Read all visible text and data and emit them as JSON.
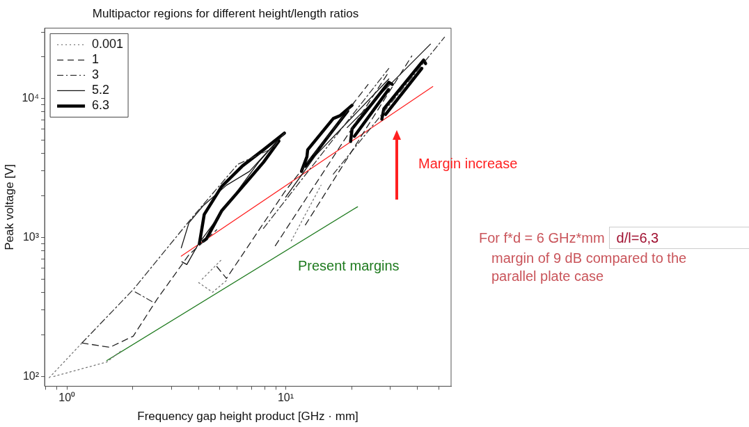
{
  "chart_data": {
    "type": "line",
    "title": "Multipactor regions for different height/length ratios",
    "xlabel": "Frequency gap height product [GHz · mm]",
    "ylabel": "Peak voltage [V]",
    "log": "xy",
    "grid": false,
    "legend": "top left",
    "xlim": [
      0.79,
      57
    ],
    "ylim": [
      85,
      32000
    ],
    "xticks": [
      {
        "value": 0.8,
        "label": null
      },
      {
        "value": 0.9,
        "label": null
      },
      {
        "value": 1,
        "label": "10⁰"
      },
      {
        "value": 2,
        "label": null
      },
      {
        "value": 3,
        "label": null
      },
      {
        "value": 4,
        "label": null
      },
      {
        "value": 5,
        "label": null
      },
      {
        "value": 6,
        "label": null
      },
      {
        "value": 7,
        "label": null
      },
      {
        "value": 8,
        "label": null
      },
      {
        "value": 9,
        "label": null
      },
      {
        "value": 10,
        "label": "10¹"
      },
      {
        "value": 20,
        "label": null
      },
      {
        "value": 30,
        "label": null
      },
      {
        "value": 40,
        "label": null
      },
      {
        "value": 50,
        "label": null
      }
    ],
    "yticks": [
      {
        "value": 100,
        "label": "10²"
      },
      {
        "value": 200,
        "label": null
      },
      {
        "value": 300,
        "label": null
      },
      {
        "value": 400,
        "label": null
      },
      {
        "value": 500,
        "label": null
      },
      {
        "value": 600,
        "label": null
      },
      {
        "value": 700,
        "label": null
      },
      {
        "value": 800,
        "label": null
      },
      {
        "value": 900,
        "label": null
      },
      {
        "value": 1000,
        "label": "10³"
      },
      {
        "value": 2000,
        "label": null
      },
      {
        "value": 3000,
        "label": null
      },
      {
        "value": 4000,
        "label": null
      },
      {
        "value": 5000,
        "label": null
      },
      {
        "value": 6000,
        "label": null
      },
      {
        "value": 7000,
        "label": null
      },
      {
        "value": 8000,
        "label": null
      },
      {
        "value": 9000,
        "label": null
      },
      {
        "value": 10000,
        "label": "10⁴"
      },
      {
        "value": 20000,
        "label": null
      },
      {
        "value": 30000,
        "label": null
      }
    ],
    "series": [
      {
        "name": "0.001",
        "color": "#777777",
        "line_style": "dotted",
        "x": [
          0.83,
          1.17
        ],
        "values": [
          98,
          174
        ]
      },
      {
        "color": "#777777",
        "line_style": "dotted",
        "x": [
          0.87,
          1.52,
          1.79
        ],
        "values": [
          100,
          127,
          155
        ]
      },
      {
        "color": "#777777",
        "line_style": "dotted",
        "x": [
          4.0,
          4.63,
          5.36
        ],
        "values": [
          473,
          403,
          490
        ]
      },
      {
        "color": "#777777",
        "line_style": "dotted",
        "x": [
          4.15,
          5.09
        ],
        "values": [
          501,
          692
        ]
      },
      {
        "color": "#777777",
        "line_style": "dotted",
        "x": [
          10.6,
          14.5
        ],
        "values": [
          944,
          2371
        ]
      },
      {
        "name": "1",
        "color": "#222222",
        "line_style": "dashed",
        "x": [
          1.17,
          1.57,
          2.01,
          2.58,
          3.61,
          4.84
        ],
        "values": [
          174,
          162,
          195,
          359,
          750,
          1135
        ]
      },
      {
        "color": "#222222",
        "line_style": "dashed",
        "x": [
          4.84,
          5.36,
          9.86,
          23.8
        ],
        "values": [
          617,
          507,
          2113,
          12590
        ]
      },
      {
        "color": "#222222",
        "line_style": "dashed",
        "x": [
          8.96,
          29.6
        ],
        "values": [
          871,
          15490
        ]
      },
      {
        "color": "#222222",
        "line_style": "dashed",
        "x": [
          12.3,
          37.7
        ],
        "values": [
          1230,
          20180
        ]
      },
      {
        "name": "3",
        "color": "#333333",
        "line_style": "dashdot",
        "x": [
          1.17,
          2.01,
          3.72,
          6.03,
          8.7,
          9.86
        ],
        "values": [
          174,
          422,
          1380,
          3350,
          4365,
          5623
        ]
      },
      {
        "color": "#333333",
        "line_style": "dashdot",
        "x": [
          2.05,
          2.5
        ],
        "values": [
          405,
          339
        ]
      },
      {
        "color": "#333333",
        "line_style": "dashdot",
        "x": [
          16.5,
          53.2
        ],
        "values": [
          2851,
          27540
        ]
      },
      {
        "color": "#333333",
        "line_style": "dashdot",
        "x": [
          7.91,
          29.6
        ],
        "values": [
          1161,
          16410
        ]
      },
      {
        "name": "5.2",
        "color": "#111111",
        "line_style": "solid",
        "x": [
          3.33,
          3.61,
          4.18,
          5.36,
          6.83,
          9.86
        ],
        "values": [
          841,
          1274,
          1679,
          2371,
          2985,
          5623
        ]
      },
      {
        "color": "#111111",
        "line_style": "solid",
        "x": [
          3.35,
          3.53,
          4.0,
          7.51,
          9.3
        ],
        "values": [
          668,
          638,
          902,
          3467,
          5069
        ]
      },
      {
        "color": "#111111",
        "line_style": "solid",
        "x": [
          10,
          19.8
        ],
        "values": [
          1950,
          8710
        ]
      },
      {
        "color": "#111111",
        "line_style": "solid",
        "x": [
          13.7,
          29.6
        ],
        "values": [
          3890,
          13800
        ]
      },
      {
        "color": "#111111",
        "line_style": "solid",
        "x": [
          19.1,
          45.9
        ],
        "values": [
          6166,
          24550
        ]
      },
      {
        "name": "6.3",
        "color": "#000000",
        "line_style": "solid",
        "x": [
          4.03,
          4.24,
          5.09,
          6.35,
          7.91,
          9.86
        ],
        "values": [
          902,
          1462,
          2317,
          3273,
          4266,
          5623
        ]
      },
      {
        "color": "#000000",
        "line_style": "solid",
        "x": [
          4.2,
          4.34,
          5.09,
          6.35,
          7.91,
          9.3
        ],
        "values": [
          940,
          977,
          1549,
          2317,
          3467,
          4925
        ]
      },
      {
        "color": "#000000",
        "line_style": "solid",
        "x": [
          11.8,
          12.5,
          12.6,
          16.5,
          17.7,
          20.1
        ],
        "values": [
          2985,
          3802,
          4266,
          7161,
          7499,
          8913
        ]
      },
      {
        "color": "#000000",
        "line_style": "solid",
        "x": [
          12.3,
          19.2
        ],
        "values": [
          3250,
          8110
        ]
      },
      {
        "color": "#000000",
        "line_style": "solid",
        "x": [
          19.8,
          20.1,
          29.6,
          30.7
        ],
        "values": [
          4898,
          6026,
          13030,
          12590
        ]
      },
      {
        "color": "#000000",
        "line_style": "solid",
        "x": [
          20.6,
          29.5
        ],
        "values": [
          5335,
          11560
        ]
      },
      {
        "color": "#000000",
        "line_style": "solid",
        "x": [
          27.5,
          28.1,
          42.7,
          43.6
        ],
        "values": [
          7079,
          8414,
          18840,
          17780
        ]
      },
      {
        "color": "#000000",
        "line_style": "solid",
        "x": [
          28.6,
          41.9
        ],
        "values": [
          7657,
          16420
        ]
      },
      {
        "color": "#ff2020",
        "line_style": "solid",
        "x": [
          3.33,
          47
        ],
        "values": [
          733,
          12160
        ]
      },
      {
        "color": "#1e7a1e",
        "line_style": "solid",
        "x": [
          1.52,
          21.3
        ],
        "values": [
          130,
          1660
        ]
      }
    ],
    "annotations": [
      "Margin increase",
      "Present margins",
      "For f*d = 6 GHz*mm",
      "d/l=6,3",
      "margin of 9 dB compared to the parallel plate case"
    ]
  }
}
